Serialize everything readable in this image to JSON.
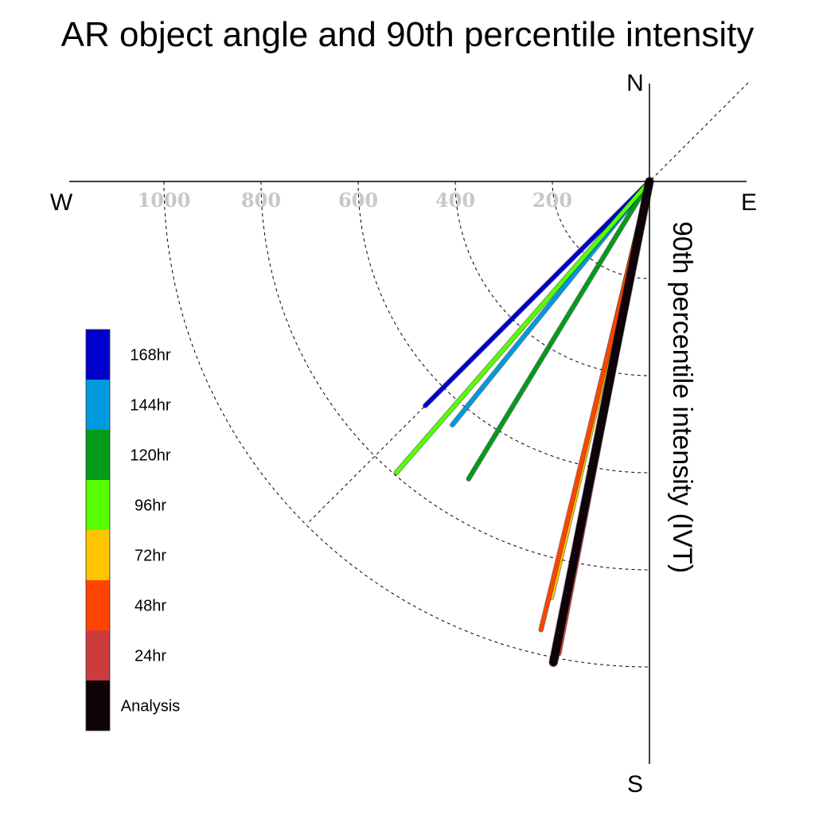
{
  "chart_data": {
    "type": "polar-vector",
    "title": "AR object angle and 90th percentile intensity",
    "radial_axis_label": "90th percentile intensity (IVT)",
    "radial_ticks": [
      200,
      400,
      600,
      800,
      1000
    ],
    "radial_max": 1000,
    "direction_labels": {
      "north": "N",
      "south": "S",
      "east": "E",
      "west": "W"
    },
    "series": [
      {
        "name": "Analysis",
        "color": "#0d0309",
        "intensity": 1010,
        "angle_deg_cw_from_north": 191.3,
        "width": 10
      },
      {
        "name": "24hr",
        "color": "#cc3c3c",
        "intensity": 990,
        "angle_deg_cw_from_north": 190.9,
        "width": 6
      },
      {
        "name": "48hr",
        "color": "#ff4400",
        "intensity": 950,
        "angle_deg_cw_from_north": 193.6,
        "width": 5
      },
      {
        "name": "72hr",
        "color": "#ffc400",
        "intensity": 880,
        "angle_deg_cw_from_north": 193.3,
        "width": 6
      },
      {
        "name": "96hr",
        "color": "#55ff00",
        "intensity": 795,
        "angle_deg_cw_from_north": 221.0,
        "width": 5
      },
      {
        "name": "120hr",
        "color": "#009c1a",
        "intensity": 717,
        "angle_deg_cw_from_north": 211.3,
        "width": 5
      },
      {
        "name": "144hr",
        "color": "#0099dd",
        "intensity": 645,
        "angle_deg_cw_from_north": 219.0,
        "width": 5
      },
      {
        "name": "168hr",
        "color": "#0000cc",
        "intensity": 653,
        "angle_deg_cw_from_north": 225.0,
        "width": 5
      }
    ],
    "legend": {
      "placement": "left",
      "order": [
        "168hr",
        "144hr",
        "120hr",
        "96hr",
        "72hr",
        "48hr",
        "24hr",
        "Analysis"
      ]
    },
    "reference_line": "dashed diagonal through origin, NE–SW"
  }
}
